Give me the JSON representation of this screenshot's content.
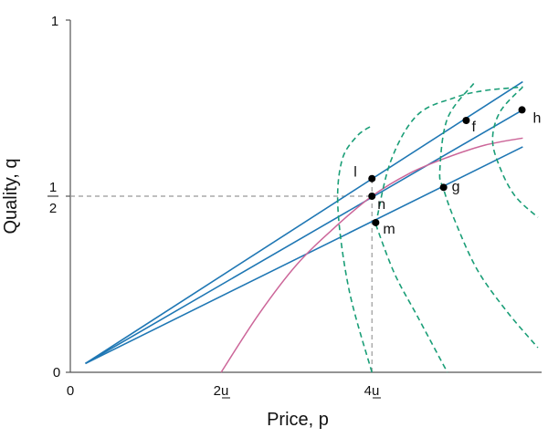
{
  "chart_data": {
    "type": "line",
    "title": "",
    "xlabel": "Price, p",
    "ylabel": "Quality, q",
    "xlim": [
      0,
      6.25
    ],
    "ylim": [
      0,
      1
    ],
    "x_ticks": [
      {
        "value": 0,
        "label": "0"
      },
      {
        "value": 2,
        "label": "2u",
        "underline_char": "u"
      },
      {
        "value": 4,
        "label": "4u",
        "underline_char": "u"
      }
    ],
    "y_ticks": [
      {
        "value": 0,
        "label": "0"
      },
      {
        "value": 0.5,
        "label_num": "1",
        "label_den": "2"
      },
      {
        "value": 1,
        "label": "1"
      }
    ],
    "reference_lines": [
      {
        "name": "half-quality-line",
        "points": [
          [
            0,
            0.5
          ],
          [
            4,
            0.5
          ]
        ]
      },
      {
        "name": "four-u-line",
        "points": [
          [
            4,
            0
          ],
          [
            4,
            0.55
          ]
        ]
      }
    ],
    "series": [
      {
        "name": "ray-upper",
        "kind": "ray",
        "points": [
          [
            0.2,
            0.025
          ],
          [
            6.0,
            0.825
          ]
        ]
      },
      {
        "name": "ray-middle",
        "kind": "ray",
        "points": [
          [
            0.2,
            0.025
          ],
          [
            6.0,
            0.745
          ]
        ]
      },
      {
        "name": "ray-lower",
        "kind": "ray",
        "points": [
          [
            0.2,
            0.025
          ],
          [
            6.0,
            0.64
          ]
        ]
      },
      {
        "name": "pink-curve",
        "kind": "curve",
        "points": [
          [
            2,
            0
          ],
          [
            2.5,
            0.165
          ],
          [
            3.0,
            0.305
          ],
          [
            3.5,
            0.41
          ],
          [
            4.0,
            0.5
          ],
          [
            4.5,
            0.565
          ],
          [
            5.0,
            0.61
          ],
          [
            5.5,
            0.645
          ],
          [
            6.0,
            0.665
          ]
        ]
      },
      {
        "name": "iso-1",
        "kind": "iso",
        "points": [
          [
            4.0,
            0
          ],
          [
            3.7,
            0.23
          ],
          [
            3.55,
            0.46
          ],
          [
            3.6,
            0.6
          ],
          [
            3.8,
            0.67
          ],
          [
            4.0,
            0.7
          ]
        ]
      },
      {
        "name": "iso-2",
        "kind": "iso",
        "points": [
          [
            4.05,
            0.42
          ],
          [
            4.25,
            0.6
          ],
          [
            4.6,
            0.73
          ],
          [
            5.1,
            0.78
          ],
          [
            5.5,
            0.8
          ],
          [
            6.0,
            0.81
          ]
        ]
      },
      {
        "name": "iso-3",
        "kind": "iso",
        "points": [
          [
            4.05,
            0.42
          ],
          [
            4.3,
            0.28
          ],
          [
            4.6,
            0.16
          ],
          [
            5.0,
            0
          ]
        ]
      },
      {
        "name": "iso-4",
        "kind": "iso",
        "points": [
          [
            5.35,
            0.82
          ],
          [
            5.0,
            0.72
          ],
          [
            4.9,
            0.57
          ],
          [
            4.95,
            0.52
          ],
          [
            5.1,
            0.43
          ],
          [
            5.4,
            0.29
          ],
          [
            5.8,
            0.17
          ],
          [
            6.2,
            0.07
          ]
        ]
      },
      {
        "name": "iso-5",
        "kind": "iso",
        "points": [
          [
            6.0,
            0.81
          ],
          [
            5.7,
            0.74
          ],
          [
            5.6,
            0.66
          ],
          [
            5.7,
            0.58
          ],
          [
            5.9,
            0.5
          ],
          [
            6.2,
            0.44
          ]
        ]
      }
    ],
    "points": [
      {
        "label": "l",
        "x": 4.0,
        "y": 0.55
      },
      {
        "label": "n",
        "x": 4.0,
        "y": 0.5
      },
      {
        "label": "m",
        "x": 4.05,
        "y": 0.425
      },
      {
        "label": "g",
        "x": 4.95,
        "y": 0.525
      },
      {
        "label": "f",
        "x": 5.25,
        "y": 0.715
      },
      {
        "label": "h",
        "x": 5.99,
        "y": 0.745
      }
    ],
    "colors": {
      "rays": "#1f77b4",
      "pink": "#cc6699",
      "iso": "#1a9e77",
      "guides": "#999999",
      "points": "#000000"
    }
  }
}
